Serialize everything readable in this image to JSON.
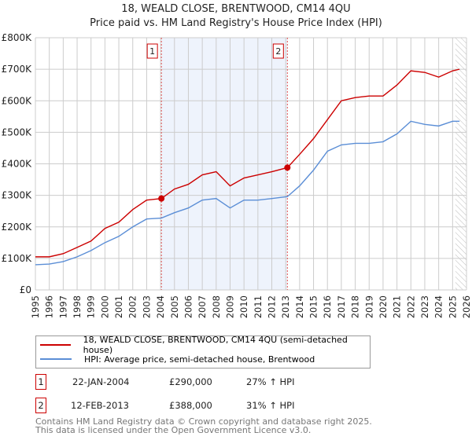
{
  "chart_data": {
    "type": "line",
    "title": "18, WEALD CLOSE, BRENTWOOD, CM14 4QU",
    "subtitle": "Price paid vs. HM Land Registry's House Price Index (HPI)",
    "xlim": [
      1995,
      2026
    ],
    "ylim": [
      0,
      800000
    ],
    "y_ticks": [
      {
        "v": 0,
        "label": "£0"
      },
      {
        "v": 100000,
        "label": "£100K"
      },
      {
        "v": 200000,
        "label": "£200K"
      },
      {
        "v": 300000,
        "label": "£300K"
      },
      {
        "v": 400000,
        "label": "£400K"
      },
      {
        "v": 500000,
        "label": "£500K"
      },
      {
        "v": 600000,
        "label": "£600K"
      },
      {
        "v": 700000,
        "label": "£700K"
      },
      {
        "v": 800000,
        "label": "£800K"
      }
    ],
    "x_ticks": [
      "1995",
      "1996",
      "1997",
      "1998",
      "1999",
      "2000",
      "2001",
      "2002",
      "2003",
      "2004",
      "2005",
      "2006",
      "2007",
      "2008",
      "2009",
      "2010",
      "2011",
      "2012",
      "2013",
      "2014",
      "2015",
      "2016",
      "2017",
      "2018",
      "2019",
      "2020",
      "2021",
      "2022",
      "2023",
      "2024",
      "2025",
      "2026"
    ],
    "x": [
      1995,
      1996,
      1997,
      1998,
      1999,
      2000,
      2001,
      2002,
      2003,
      2004.06,
      2005,
      2006,
      2007,
      2008,
      2009,
      2010,
      2011,
      2012,
      2013.12,
      2014,
      2015,
      2016,
      2017,
      2018,
      2019,
      2020,
      2021,
      2022,
      2023,
      2024,
      2025,
      2025.5
    ],
    "series": [
      {
        "name": "18, WEALD CLOSE, BRENTWOOD, CM14 4QU (semi-detached house)",
        "color": "#cc0000",
        "values": [
          105000,
          105000,
          115000,
          135000,
          155000,
          195000,
          215000,
          255000,
          285000,
          290000,
          320000,
          335000,
          365000,
          375000,
          330000,
          355000,
          365000,
          375000,
          388000,
          430000,
          480000,
          540000,
          600000,
          610000,
          615000,
          615000,
          650000,
          695000,
          690000,
          675000,
          695000,
          700000
        ]
      },
      {
        "name": "HPI: Average price, semi-detached house, Brentwood",
        "color": "#5b8ed6",
        "values": [
          80000,
          82000,
          90000,
          105000,
          125000,
          150000,
          170000,
          200000,
          225000,
          228000,
          245000,
          260000,
          285000,
          290000,
          260000,
          285000,
          285000,
          290000,
          296000,
          330000,
          380000,
          440000,
          460000,
          465000,
          465000,
          470000,
          495000,
          535000,
          525000,
          520000,
          535000,
          535000
        ]
      }
    ],
    "sales": [
      {
        "id": "1",
        "x": 2004.06,
        "date": "22-JAN-2004",
        "price": 290000,
        "price_label": "£290,000",
        "hpi": "27% ↑ HPI"
      },
      {
        "id": "2",
        "x": 2013.12,
        "date": "12-FEB-2013",
        "price": 388000,
        "price_label": "£388,000",
        "hpi": "31% ↑ HPI"
      }
    ],
    "forecast_start": 2025.2,
    "footer1": "Contains HM Land Registry data © Crown copyright and database right 2025.",
    "footer2": "This data is licensed under the Open Government Licence v3.0."
  }
}
